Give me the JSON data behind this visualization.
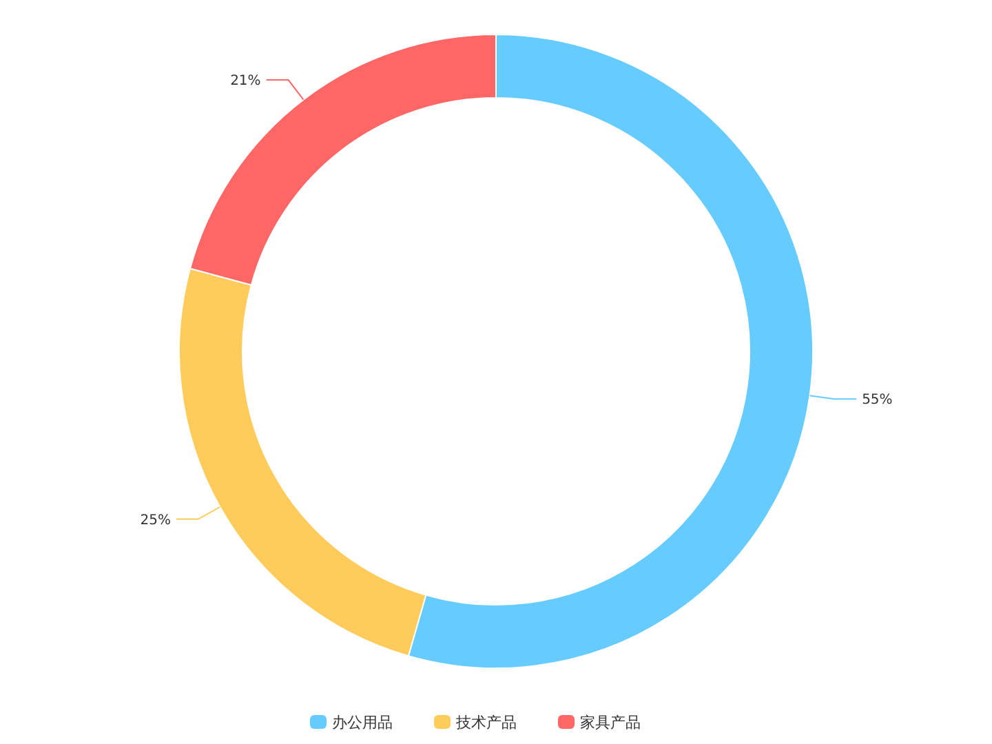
{
  "chart_data": {
    "type": "donut",
    "categories": [
      "办公用品",
      "技术产品",
      "家具产品"
    ],
    "values": [
      55,
      25,
      21
    ],
    "colors": [
      "#66ccff",
      "#ffcc5c",
      "#ff6666"
    ],
    "value_labels": [
      "55%",
      "25%",
      "21%"
    ],
    "legend": "bottom"
  }
}
